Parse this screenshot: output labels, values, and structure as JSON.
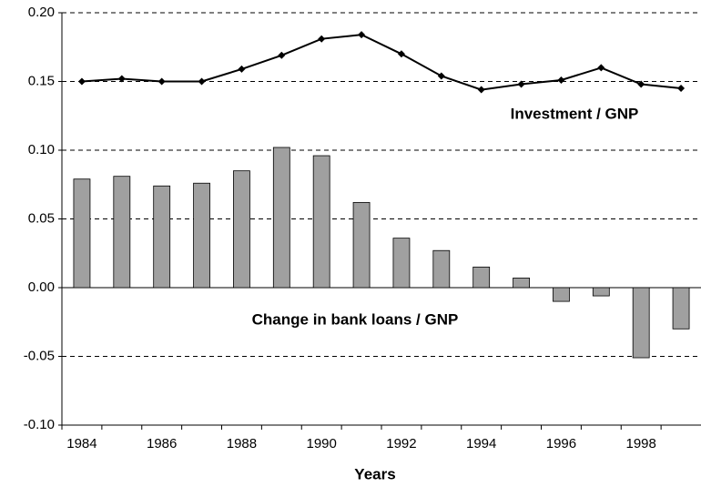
{
  "chart_data": {
    "type": "bar_line",
    "x_label": "Years",
    "categories": [
      "1984",
      null,
      "1986",
      null,
      "1988",
      null,
      "1990",
      null,
      "1992",
      null,
      "1994",
      null,
      "1996",
      null,
      "1998",
      null
    ],
    "series": [
      {
        "name": "Change in bank loans / GNP",
        "type": "bar",
        "color": "#a0a0a0",
        "values": [
          0.079,
          0.081,
          0.074,
          0.076,
          0.085,
          0.102,
          0.096,
          0.062,
          0.036,
          0.027,
          0.015,
          0.007,
          -0.01,
          -0.006,
          -0.051,
          -0.03
        ]
      },
      {
        "name": "Investment / GNP",
        "type": "line",
        "color": "#000000",
        "values": [
          0.15,
          0.152,
          0.15,
          0.15,
          0.159,
          0.169,
          0.181,
          0.184,
          0.17,
          0.154,
          0.144,
          0.148,
          0.151,
          0.16,
          0.148,
          0.145
        ]
      }
    ],
    "ylim": [
      -0.1,
      0.2
    ],
    "yticks": [
      {
        "value": -0.1,
        "label": "-0.10"
      },
      {
        "value": -0.05,
        "label": "-0.05"
      },
      {
        "value": 0,
        "label": "0.00"
      },
      {
        "value": 0.05,
        "label": "0.05"
      },
      {
        "value": 0.1,
        "label": "0.10"
      },
      {
        "value": 0.15,
        "label": "0.15"
      },
      {
        "value": 0.2,
        "label": "0.20"
      }
    ],
    "grid": true
  }
}
